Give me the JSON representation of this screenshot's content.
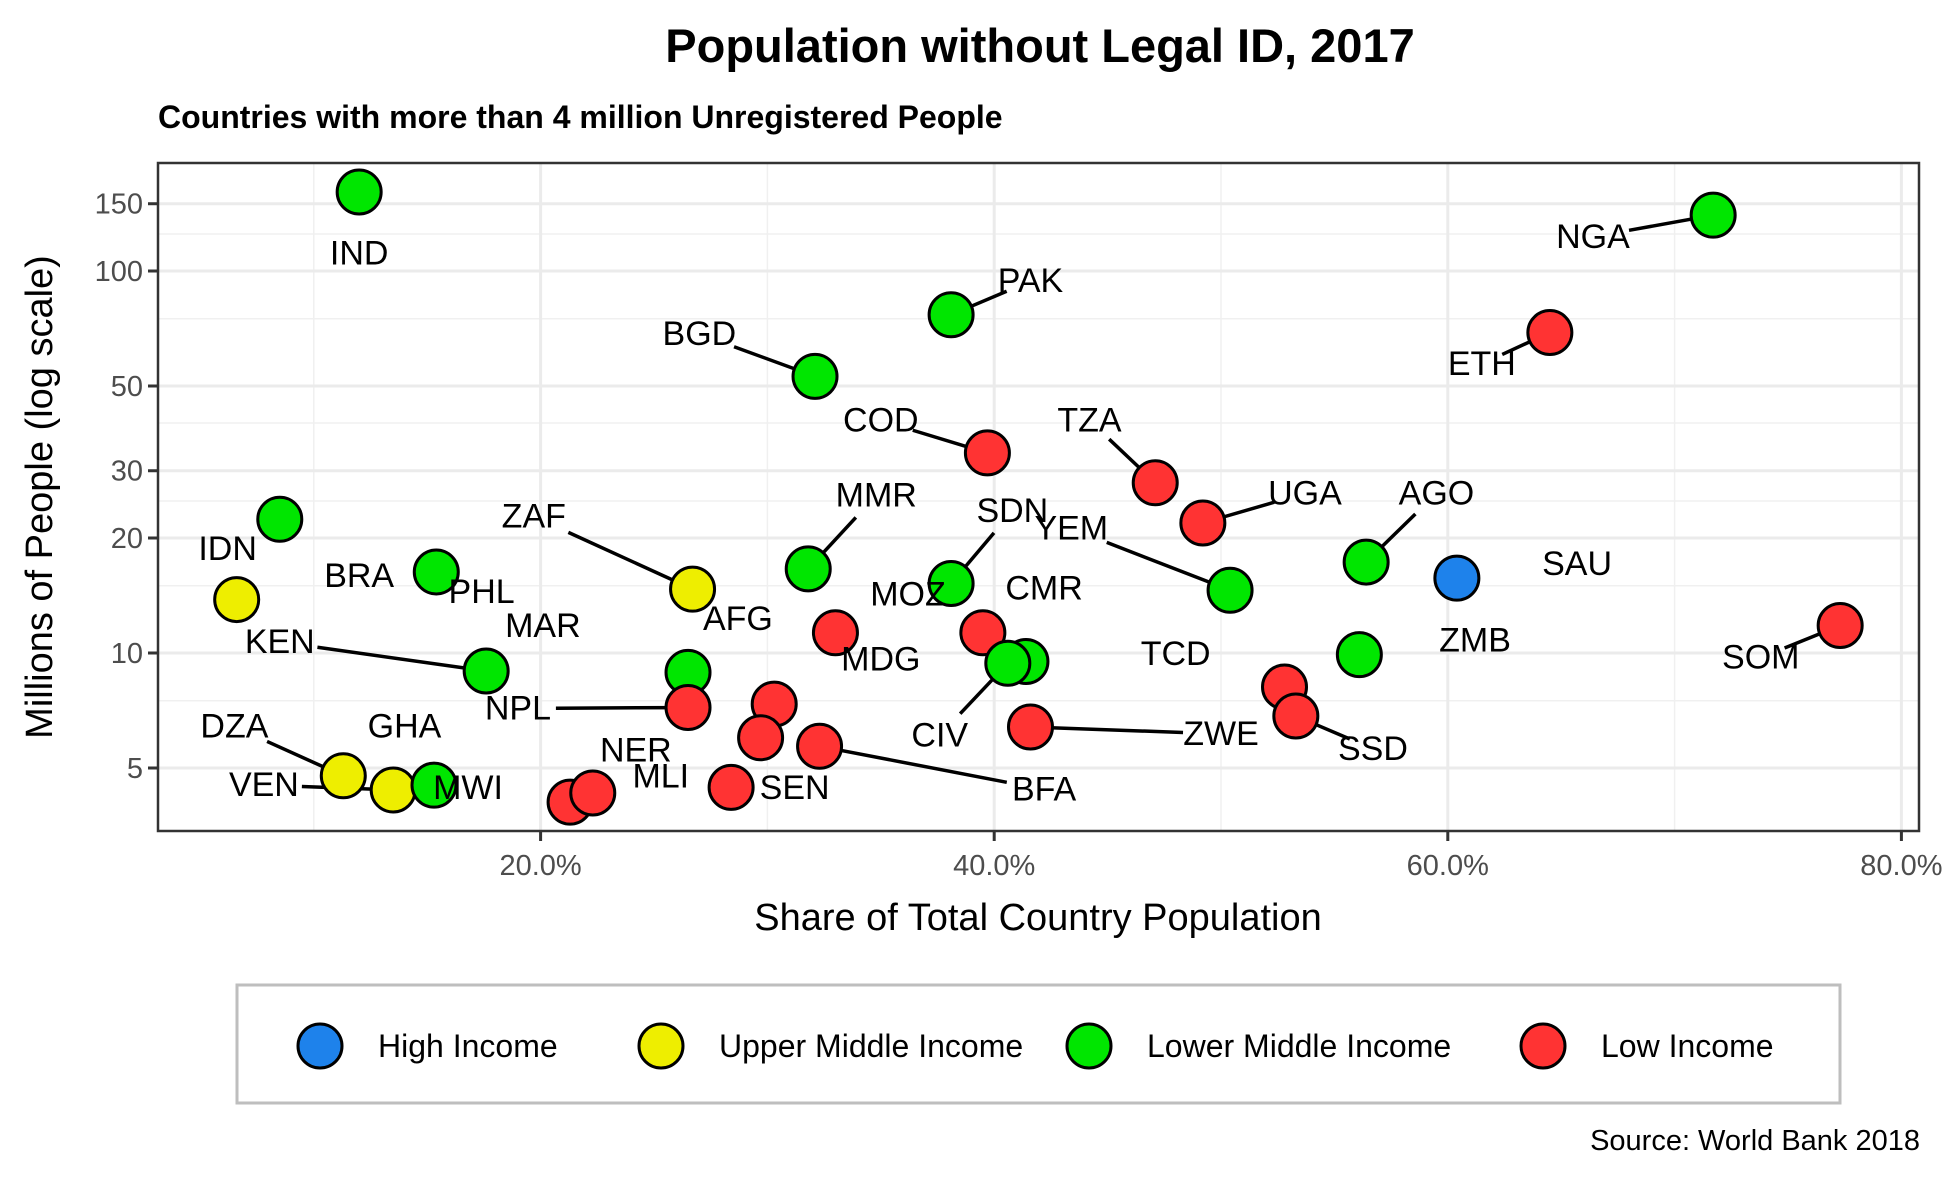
{
  "chart_data": {
    "type": "scatter",
    "title": "Population without Legal ID,  2017",
    "subtitle": "Countries with more than 4 million Unregistered People",
    "xlabel": "Share of Total Country Population",
    "ylabel": "Millions of People (log scale)",
    "caption": "Source: World Bank 2018",
    "x_scale": "linear",
    "y_scale": "log",
    "xlim": [
      0.038,
      0.805
    ],
    "ylim": [
      3.7,
      185
    ],
    "x_ticks": [
      0.2,
      0.4,
      0.6,
      0.8
    ],
    "x_tick_labels": [
      "20.0%",
      "40.0%",
      "60.0%",
      "80.0%"
    ],
    "y_ticks": [
      5,
      10,
      20,
      30,
      50,
      100,
      150
    ],
    "y_tick_labels": [
      "5",
      "10",
      "20",
      "30",
      "50",
      "100",
      "150"
    ],
    "y_minor_grid": [
      7.5,
      15,
      25,
      40,
      75,
      125
    ],
    "x_minor_grid": [
      0.1,
      0.3,
      0.5,
      0.7
    ],
    "grid": true,
    "legend_position": "bottom",
    "legend": [
      {
        "key": "high",
        "label": "High Income",
        "color": "#1E82EB"
      },
      {
        "key": "upper",
        "label": "Upper Middle Income",
        "color": "#EEEE00"
      },
      {
        "key": "lower",
        "label": "Lower Middle Income",
        "color": "#00E600"
      },
      {
        "key": "low",
        "label": "Low Income",
        "color": "#FF3333"
      }
    ],
    "points": [
      {
        "code": "IND",
        "x": 0.12,
        "y": 161,
        "group": "lower",
        "lx": 0.12,
        "ly": 104,
        "line": false
      },
      {
        "code": "NGA",
        "x": 0.717,
        "y": 140,
        "group": "lower",
        "lx": 0.664,
        "ly": 115,
        "line": true
      },
      {
        "code": "PAK",
        "x": 0.381,
        "y": 76.8,
        "group": "lower",
        "lx": 0.416,
        "ly": 88,
        "line": true
      },
      {
        "code": "ETH",
        "x": 0.645,
        "y": 69,
        "group": "red",
        "lx": 0.615,
        "ly": 53.5,
        "line": true
      },
      {
        "code": "BGD",
        "x": 0.321,
        "y": 53,
        "group": "lower",
        "lx": 0.27,
        "ly": 64,
        "line": true
      },
      {
        "code": "COD",
        "x": 0.397,
        "y": 33.4,
        "group": "low",
        "lx": 0.35,
        "ly": 38,
        "line": true
      },
      {
        "code": "TZA",
        "x": 0.471,
        "y": 27.9,
        "group": "low",
        "lx": 0.442,
        "ly": 38,
        "line": true
      },
      {
        "code": "UGA",
        "x": 0.492,
        "y": 21.9,
        "group": "low",
        "lx": 0.537,
        "ly": 24.5,
        "line": true
      },
      {
        "code": "IDN",
        "x": 0.085,
        "y": 22.4,
        "group": "lower",
        "lx": 0.062,
        "ly": 17.5,
        "line": false
      },
      {
        "code": "BRA",
        "x": 0.066,
        "y": 13.8,
        "group": "upper",
        "lx": 0.12,
        "ly": 14.9,
        "line": false
      },
      {
        "code": "PHL",
        "x": 0.154,
        "y": 16.3,
        "group": "lower",
        "lx": 0.174,
        "ly": 13.5,
        "line": false
      },
      {
        "code": "ZAF",
        "x": 0.267,
        "y": 14.7,
        "group": "upper",
        "lx": 0.197,
        "ly": 21.3,
        "line": true
      },
      {
        "code": "MMR",
        "x": 0.318,
        "y": 16.6,
        "group": "lower",
        "lx": 0.348,
        "ly": 24.2,
        "line": true
      },
      {
        "code": "SDN",
        "x": 0.381,
        "y": 15.2,
        "group": "lower",
        "lx": 0.408,
        "ly": 22.0,
        "line": true
      },
      {
        "code": "YEM",
        "x": 0.504,
        "y": 14.6,
        "group": "lower",
        "lx": 0.434,
        "ly": 19.8,
        "line": true
      },
      {
        "code": "AGO",
        "x": 0.564,
        "y": 17.3,
        "group": "lower",
        "lx": 0.595,
        "ly": 24.5,
        "line": true
      },
      {
        "code": "SAU",
        "x": 0.604,
        "y": 15.7,
        "group": "high",
        "lx": 0.657,
        "ly": 16.0,
        "line": false
      },
      {
        "code": "MOZ",
        "x": 0.33,
        "y": 11.3,
        "group": "low",
        "lx": 0.362,
        "ly": 13.3,
        "line": false
      },
      {
        "code": "MDG",
        "x": 0.395,
        "y": 11.3,
        "group": "low",
        "lx": 0.35,
        "ly": 9.0,
        "line": false
      },
      {
        "code": "CMR",
        "x": 0.414,
        "y": 9.5,
        "group": "lower",
        "lx": 0.422,
        "ly": 13.8,
        "line": false
      },
      {
        "code": "CIV",
        "x": 0.406,
        "y": 9.4,
        "group": "lower",
        "lx": 0.376,
        "ly": 5.7,
        "line": true
      },
      {
        "code": "MAR",
        "x": 0.265,
        "y": 8.9,
        "group": "lower",
        "lx": 0.201,
        "ly": 11.0,
        "line": false
      },
      {
        "code": "AFG",
        "x": 0.303,
        "y": 7.35,
        "group": "low",
        "lx": 0.287,
        "ly": 11.5,
        "line": false
      },
      {
        "code": "NPL",
        "x": 0.265,
        "y": 7.2,
        "group": "low",
        "lx": 0.19,
        "ly": 6.7,
        "line": true
      },
      {
        "code": "KEN",
        "x": 0.176,
        "y": 8.97,
        "group": "lower",
        "lx": 0.085,
        "ly": 10.0,
        "line": true
      },
      {
        "code": "NER",
        "x": 0.297,
        "y": 6.0,
        "group": "low",
        "lx": 0.242,
        "ly": 5.2,
        "line": false
      },
      {
        "code": "BFA",
        "x": 0.323,
        "y": 5.7,
        "group": "low",
        "lx": 0.422,
        "ly": 4.11,
        "line": true
      },
      {
        "code": "ZWE",
        "x": 0.416,
        "y": 6.4,
        "group": "low",
        "lx": 0.5,
        "ly": 5.75,
        "line": true
      },
      {
        "code": "TCD",
        "x": 0.528,
        "y": 8.15,
        "group": "low",
        "lx": 0.48,
        "ly": 9.3,
        "line": false
      },
      {
        "code": "SSD",
        "x": 0.533,
        "y": 6.84,
        "group": "low",
        "lx": 0.567,
        "ly": 5.25,
        "line": true
      },
      {
        "code": "ZMB",
        "x": 0.561,
        "y": 9.9,
        "group": "lower",
        "lx": 0.612,
        "ly": 10.1,
        "line": false
      },
      {
        "code": "SOM",
        "x": 0.773,
        "y": 11.8,
        "group": "low",
        "lx": 0.738,
        "ly": 9.1,
        "line": true
      },
      {
        "code": "DZA",
        "x": 0.113,
        "y": 4.77,
        "group": "upper",
        "lx": 0.065,
        "ly": 6.0,
        "line": true
      },
      {
        "code": "VEN",
        "x": 0.135,
        "y": 4.38,
        "group": "upper",
        "lx": 0.078,
        "ly": 4.22,
        "line": true
      },
      {
        "code": "GHA",
        "x": 0.153,
        "y": 4.51,
        "group": "lower",
        "lx": 0.14,
        "ly": 6.0,
        "line": false
      },
      {
        "code": "MWI",
        "x": 0.213,
        "y": 4.07,
        "group": "low",
        "lx": 0.168,
        "ly": 4.15,
        "line": false
      },
      {
        "code": "MLI",
        "x": 0.223,
        "y": 4.3,
        "group": "low",
        "lx": 0.253,
        "ly": 4.45,
        "line": false
      },
      {
        "code": "SEN",
        "x": 0.284,
        "y": 4.45,
        "group": "low",
        "lx": 0.312,
        "ly": 4.15,
        "line": false
      }
    ]
  }
}
